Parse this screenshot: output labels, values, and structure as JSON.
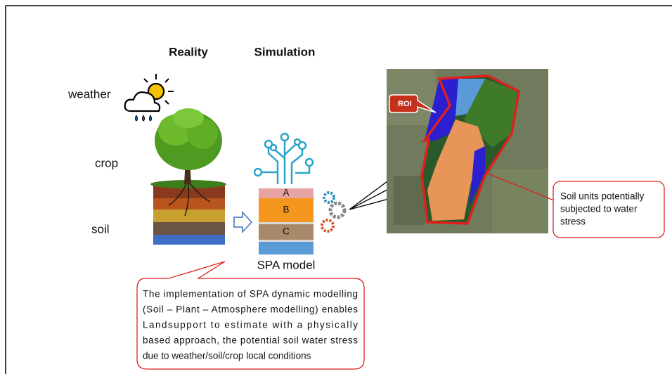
{
  "headers": {
    "reality": "Reality",
    "simulation": "Simulation"
  },
  "labels": [
    "weather",
    "crop",
    "soil"
  ],
  "layers": [
    "A",
    "B",
    "C"
  ],
  "model_label": "SPA model",
  "roi_label": "ROI",
  "stress_callout": [
    "Soil units potentially",
    "subjected to water",
    "stress"
  ],
  "description": [
    "The implementation of SPA dynamic modelling",
    "(Soil – Plant – Atmosphere modelling) enables",
    "Landsupport to estimate with a physically",
    "based approach, the potential soil water stress",
    "due to weather/soil/crop local conditions"
  ]
}
